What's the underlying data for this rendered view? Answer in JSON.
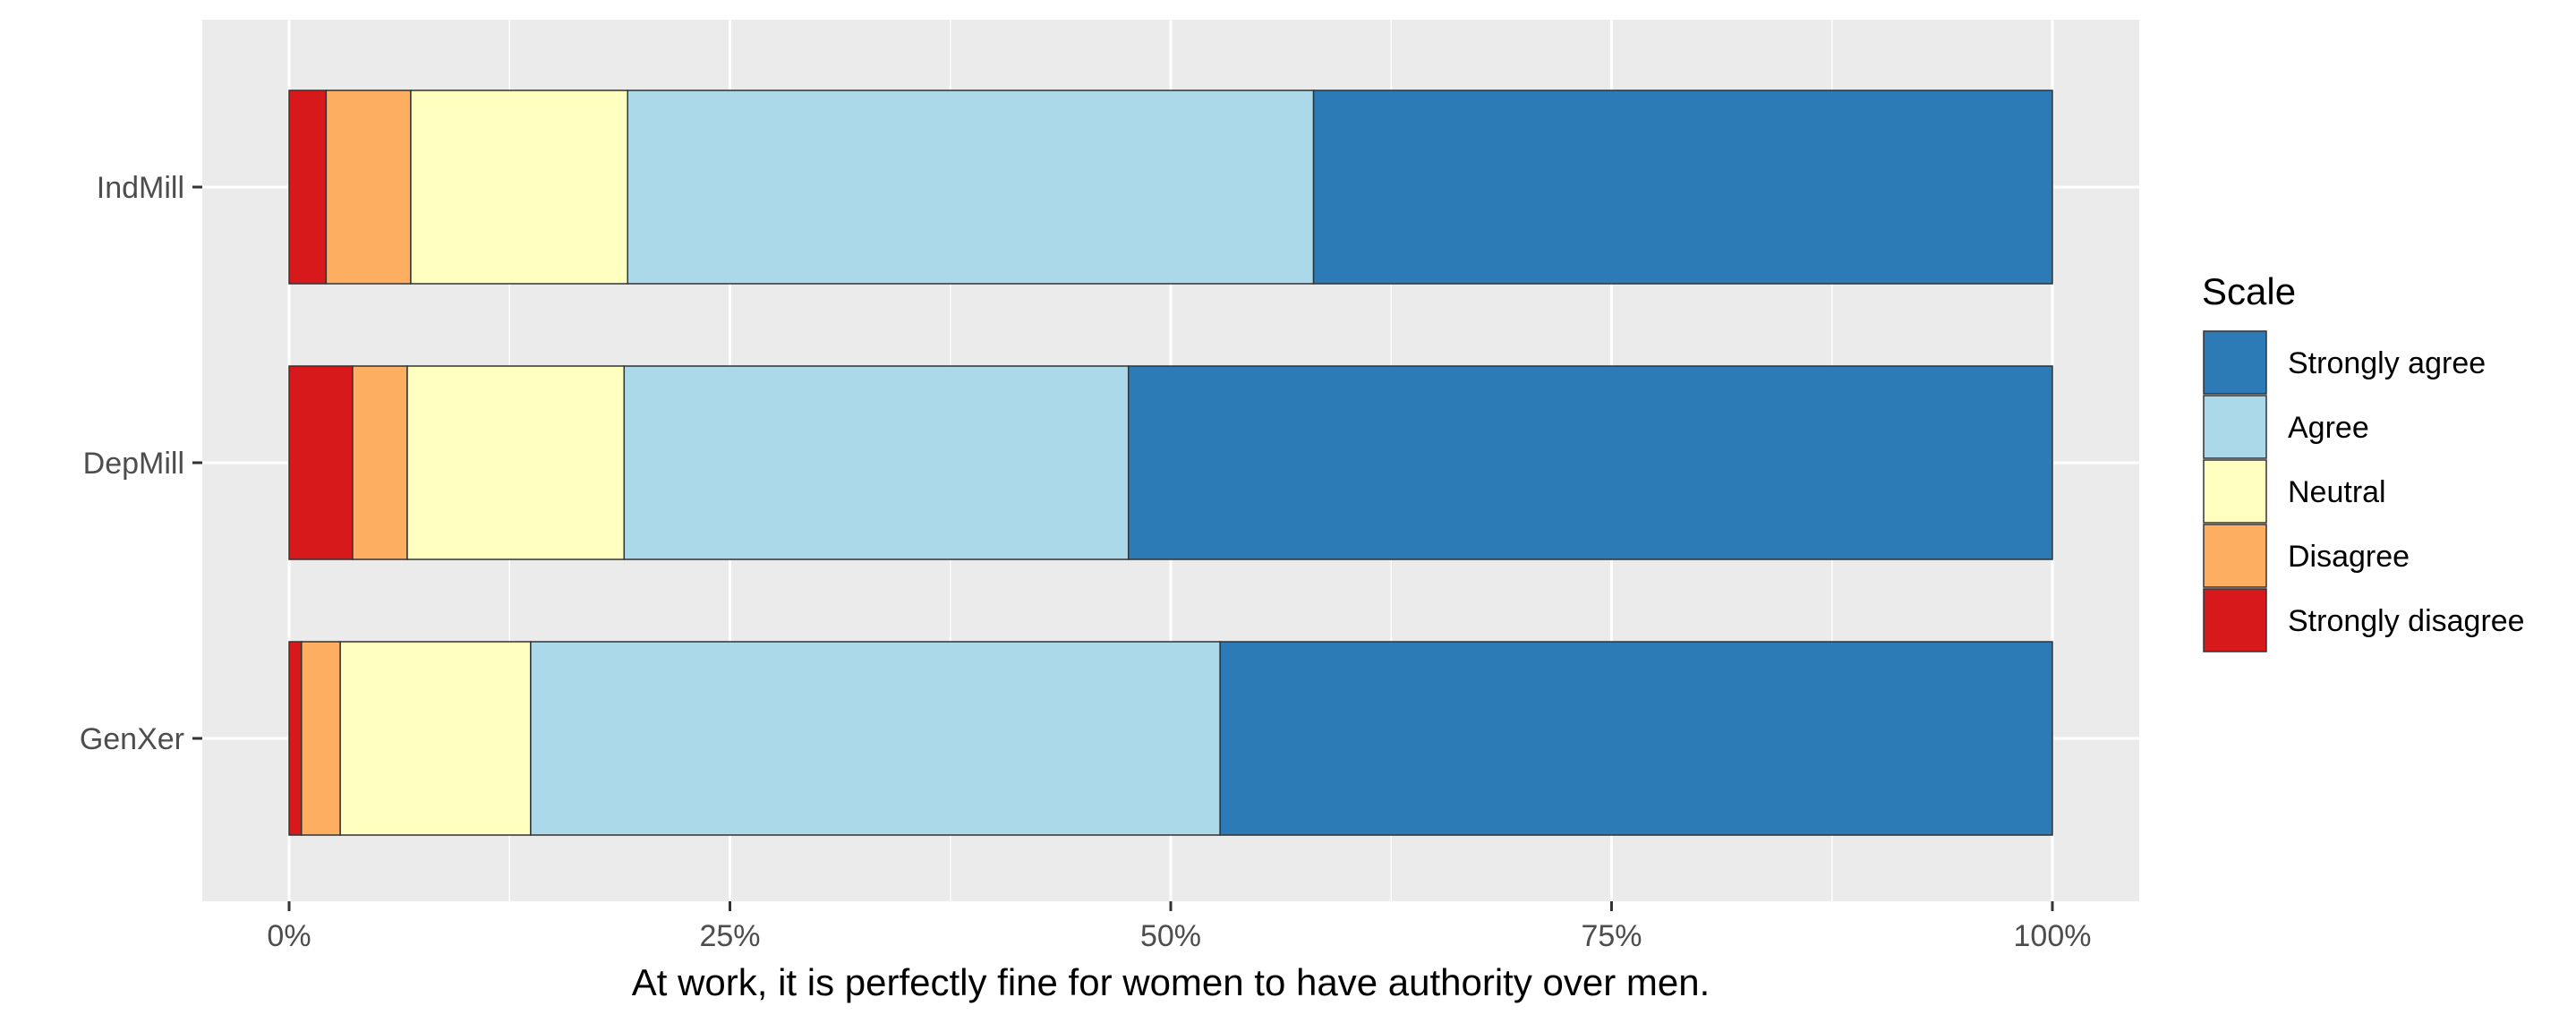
{
  "chart_data": {
    "type": "bar",
    "orientation": "horizontal",
    "stacked": true,
    "percent": true,
    "categories": [
      "IndMill",
      "DepMill",
      "GenXer"
    ],
    "series": [
      {
        "name": "Strongly disagree",
        "color": "#d7191c",
        "values": [
          2.1,
          3.6,
          0.7
        ]
      },
      {
        "name": "Disagree",
        "color": "#fdae61",
        "values": [
          4.8,
          3.1,
          2.2
        ]
      },
      {
        "name": "Neutral",
        "color": "#ffffbf",
        "values": [
          12.3,
          12.3,
          10.8
        ]
      },
      {
        "name": "Agree",
        "color": "#abd9e9",
        "values": [
          38.9,
          28.6,
          39.1
        ]
      },
      {
        "name": "Strongly agree",
        "color": "#2c7bb6",
        "values": [
          41.9,
          52.4,
          47.2
        ]
      }
    ],
    "xlim": [
      0,
      100
    ],
    "xticks": [
      0,
      25,
      50,
      75,
      100
    ],
    "xtick_labels": [
      "0%",
      "25%",
      "50%",
      "75%",
      "100%"
    ],
    "xlabel": "At work, it is perfectly fine for women to have authority over men.",
    "ylabel": "",
    "grid": true,
    "legend": {
      "title": "Scale",
      "position": "right",
      "entries": [
        "Strongly agree",
        "Agree",
        "Neutral",
        "Disagree",
        "Strongly disagree"
      ]
    }
  }
}
